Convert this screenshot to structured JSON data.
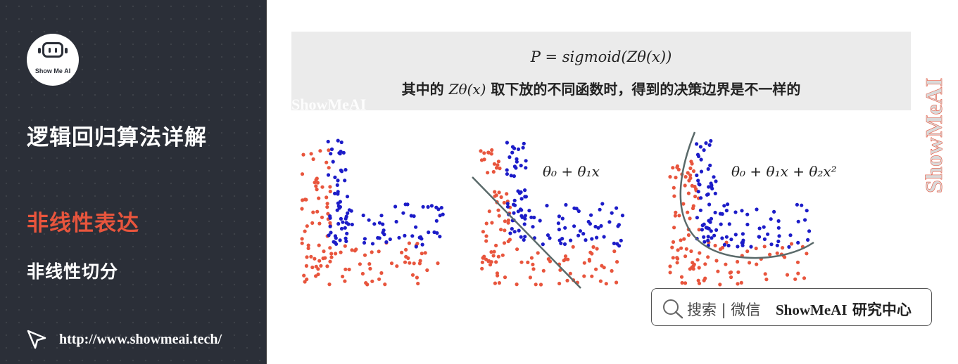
{
  "sidebar": {
    "logo_text": "Show Me AI",
    "title": "逻辑回归算法详解",
    "section": "非线性表达",
    "subsection": "非线性切分",
    "url": "http://www.showmeai.tech/"
  },
  "formula": {
    "line1": "P = sigmoid(Zθ(x))",
    "line2_prefix": "其中的",
    "line2_math": "Zθ(x)",
    "line2_suffix": "取下放的不同函数时，得到的决策边界是不一样的"
  },
  "plots": {
    "linear_label": "θ₀ + θ₁x",
    "quadratic_label": "θ₀ + θ₁x + θ₂x²"
  },
  "watermark": {
    "text": "ShowMeAI",
    "vertical": "ShowMeAI"
  },
  "search": {
    "label": "搜索 | 微信",
    "brand_en": "ShowMeAI",
    "brand_cn": "研究中心"
  },
  "colors": {
    "red_points": "#e8553d",
    "blue_points": "#1c1cc8",
    "sidebar_bg": "#2b2f38",
    "accent": "#e8553d"
  }
}
